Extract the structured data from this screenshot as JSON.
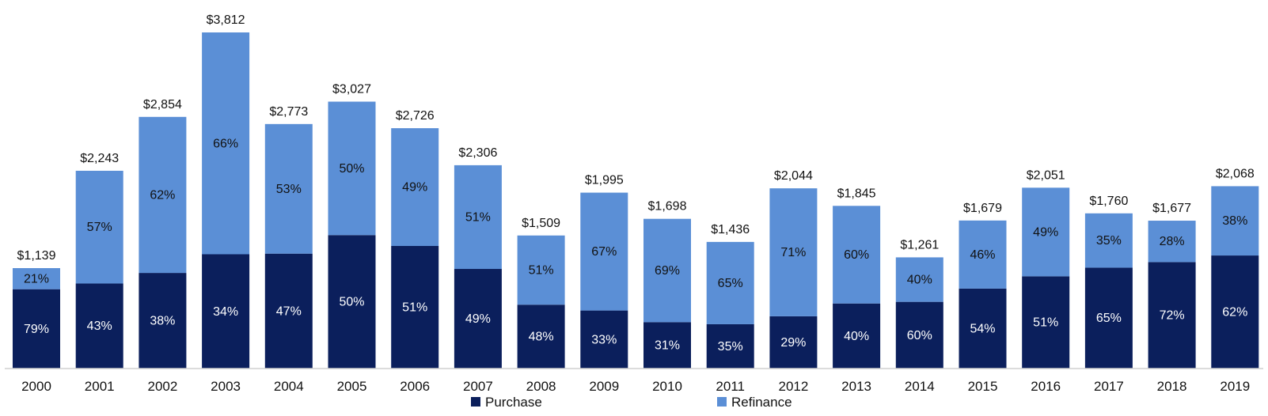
{
  "chart_data": {
    "type": "bar",
    "stacked": true,
    "title": "",
    "xlabel": "",
    "ylabel": "",
    "ylim": [
      0,
      3812
    ],
    "grid": false,
    "legend_position": "bottom-center",
    "categories": [
      "2000",
      "2001",
      "2002",
      "2003",
      "2004",
      "2005",
      "2006",
      "2007",
      "2008",
      "2009",
      "2010",
      "2011",
      "2012",
      "2013",
      "2014",
      "2015",
      "2016",
      "2017",
      "2018",
      "2019"
    ],
    "totals": [
      1139,
      2243,
      2854,
      3812,
      2773,
      3027,
      2726,
      2306,
      1509,
      1995,
      1698,
      1436,
      2044,
      1845,
      1261,
      1679,
      2051,
      1760,
      1677,
      2068
    ],
    "total_labels": [
      "$1,139",
      "$2,243",
      "$2,854",
      "$3,812",
      "$2,773",
      "$3,027",
      "$2,726",
      "$2,306",
      "$1,509",
      "$1,995",
      "$1,698",
      "$1,436",
      "$2,044",
      "$1,845",
      "$1,261",
      "$1,679",
      "$2,051",
      "$1,760",
      "$1,677",
      "$2,068"
    ],
    "series": [
      {
        "name": "Purchase",
        "color": "#0b1f5c",
        "label_color": "#ffffff",
        "percent": [
          79,
          43,
          38,
          34,
          47,
          50,
          51,
          49,
          48,
          33,
          31,
          35,
          29,
          40,
          60,
          54,
          51,
          65,
          72,
          62
        ],
        "percent_labels": [
          "79%",
          "43%",
          "38%",
          "34%",
          "47%",
          "50%",
          "51%",
          "49%",
          "48%",
          "33%",
          "31%",
          "35%",
          "29%",
          "40%",
          "60%",
          "54%",
          "51%",
          "65%",
          "72%",
          "62%"
        ]
      },
      {
        "name": "Refinance",
        "color": "#5b8fd6",
        "label_color": "#111111",
        "percent": [
          21,
          57,
          62,
          66,
          53,
          50,
          49,
          51,
          51,
          67,
          69,
          65,
          71,
          60,
          40,
          46,
          49,
          35,
          28,
          38
        ],
        "percent_labels": [
          "21%",
          "57%",
          "62%",
          "66%",
          "53%",
          "50%",
          "49%",
          "51%",
          "51%",
          "67%",
          "69%",
          "65%",
          "71%",
          "60%",
          "40%",
          "46%",
          "49%",
          "35%",
          "28%",
          "38%"
        ]
      }
    ]
  },
  "legend": {
    "purchase_label": "Purchase",
    "refinance_label": "Refinance"
  }
}
